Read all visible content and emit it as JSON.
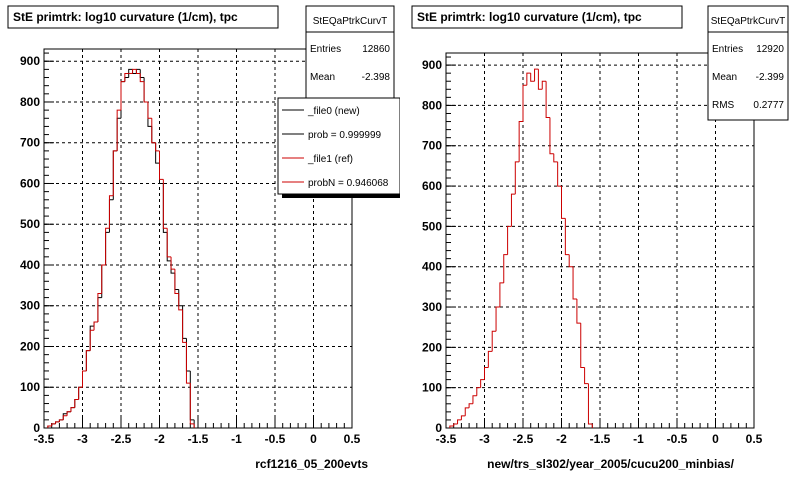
{
  "chart_data": [
    {
      "type": "bar",
      "title": "StE primtrk: log10 curvature (1/cm), tpc",
      "xlabel": "rcf1216_05_200evts",
      "ylabel": "",
      "xlim": [
        -3.5,
        0.5
      ],
      "ylim": [
        0,
        930
      ],
      "grid": true,
      "xticks": [
        "-3.5",
        "-3",
        "-2.5",
        "-2",
        "-1.5",
        "-1",
        "-0.5",
        "0",
        "0.5"
      ],
      "yticks": [
        "0",
        "100",
        "200",
        "300",
        "400",
        "500",
        "600",
        "700",
        "800",
        "900"
      ],
      "bin_edges_start": -3.45,
      "bin_width": 0.05,
      "series": [
        {
          "name": "_file0 (new)",
          "color": "#000000",
          "values": [
            5,
            10,
            15,
            20,
            35,
            40,
            50,
            70,
            100,
            140,
            190,
            250,
            260,
            320,
            400,
            480,
            560,
            680,
            760,
            850,
            860,
            880,
            870,
            880,
            860,
            800,
            740,
            700,
            650,
            600,
            480,
            410,
            380,
            340,
            300,
            220,
            140,
            20
          ]
        },
        {
          "name": "_file1 (ref)",
          "color": "#cc0000",
          "values": [
            5,
            10,
            15,
            20,
            30,
            40,
            50,
            70,
            100,
            140,
            190,
            240,
            260,
            330,
            400,
            490,
            570,
            680,
            780,
            850,
            870,
            870,
            880,
            870,
            850,
            800,
            760,
            700,
            680,
            610,
            490,
            420,
            390,
            330,
            290,
            210,
            110,
            10
          ]
        }
      ],
      "stats": {
        "name": "StEQaPtrkCurvT",
        "entries_label": "Entries",
        "entries": "12860",
        "mean_label": "Mean",
        "mean": "-2.398"
      },
      "legend": {
        "placement": "top-right",
        "entries": [
          {
            "label": "_file0 (new)",
            "color": "#000000"
          },
          {
            "label": "prob = 0.999999",
            "color": "#000000"
          },
          {
            "label": "_file1 (ref)",
            "color": "#cc0000"
          },
          {
            "label": "probN = 0.946068",
            "color": "#cc0000"
          }
        ]
      }
    },
    {
      "type": "bar",
      "title": "StE primtrk: log10 curvature (1/cm), tpc",
      "xlabel": "new/trs_sl302/year_2005/cucu200_minbias/",
      "ylabel": "",
      "xlim": [
        -3.5,
        0.5
      ],
      "ylim": [
        0,
        930
      ],
      "grid": true,
      "xticks": [
        "-3.5",
        "-3",
        "-2.5",
        "-2",
        "-1.5",
        "-1",
        "-0.5",
        "0",
        "0.5"
      ],
      "yticks": [
        "0",
        "100",
        "200",
        "300",
        "400",
        "500",
        "600",
        "700",
        "800",
        "900"
      ],
      "bin_edges_start": -3.45,
      "bin_width": 0.05,
      "series": [
        {
          "name": "",
          "color": "#cc0000",
          "values": [
            5,
            10,
            20,
            30,
            50,
            60,
            80,
            100,
            120,
            150,
            190,
            240,
            300,
            360,
            430,
            500,
            580,
            660,
            760,
            850,
            880,
            860,
            890,
            840,
            860,
            770,
            680,
            660,
            600,
            520,
            430,
            400,
            320,
            260,
            150,
            110,
            10
          ]
        }
      ],
      "stats": {
        "name": "StEQaPtrkCurvT",
        "entries_label": "Entries",
        "entries": "12920",
        "mean_label": "Mean",
        "mean": "-2.399",
        "rms_label": "RMS",
        "rms": "0.2777"
      }
    }
  ]
}
